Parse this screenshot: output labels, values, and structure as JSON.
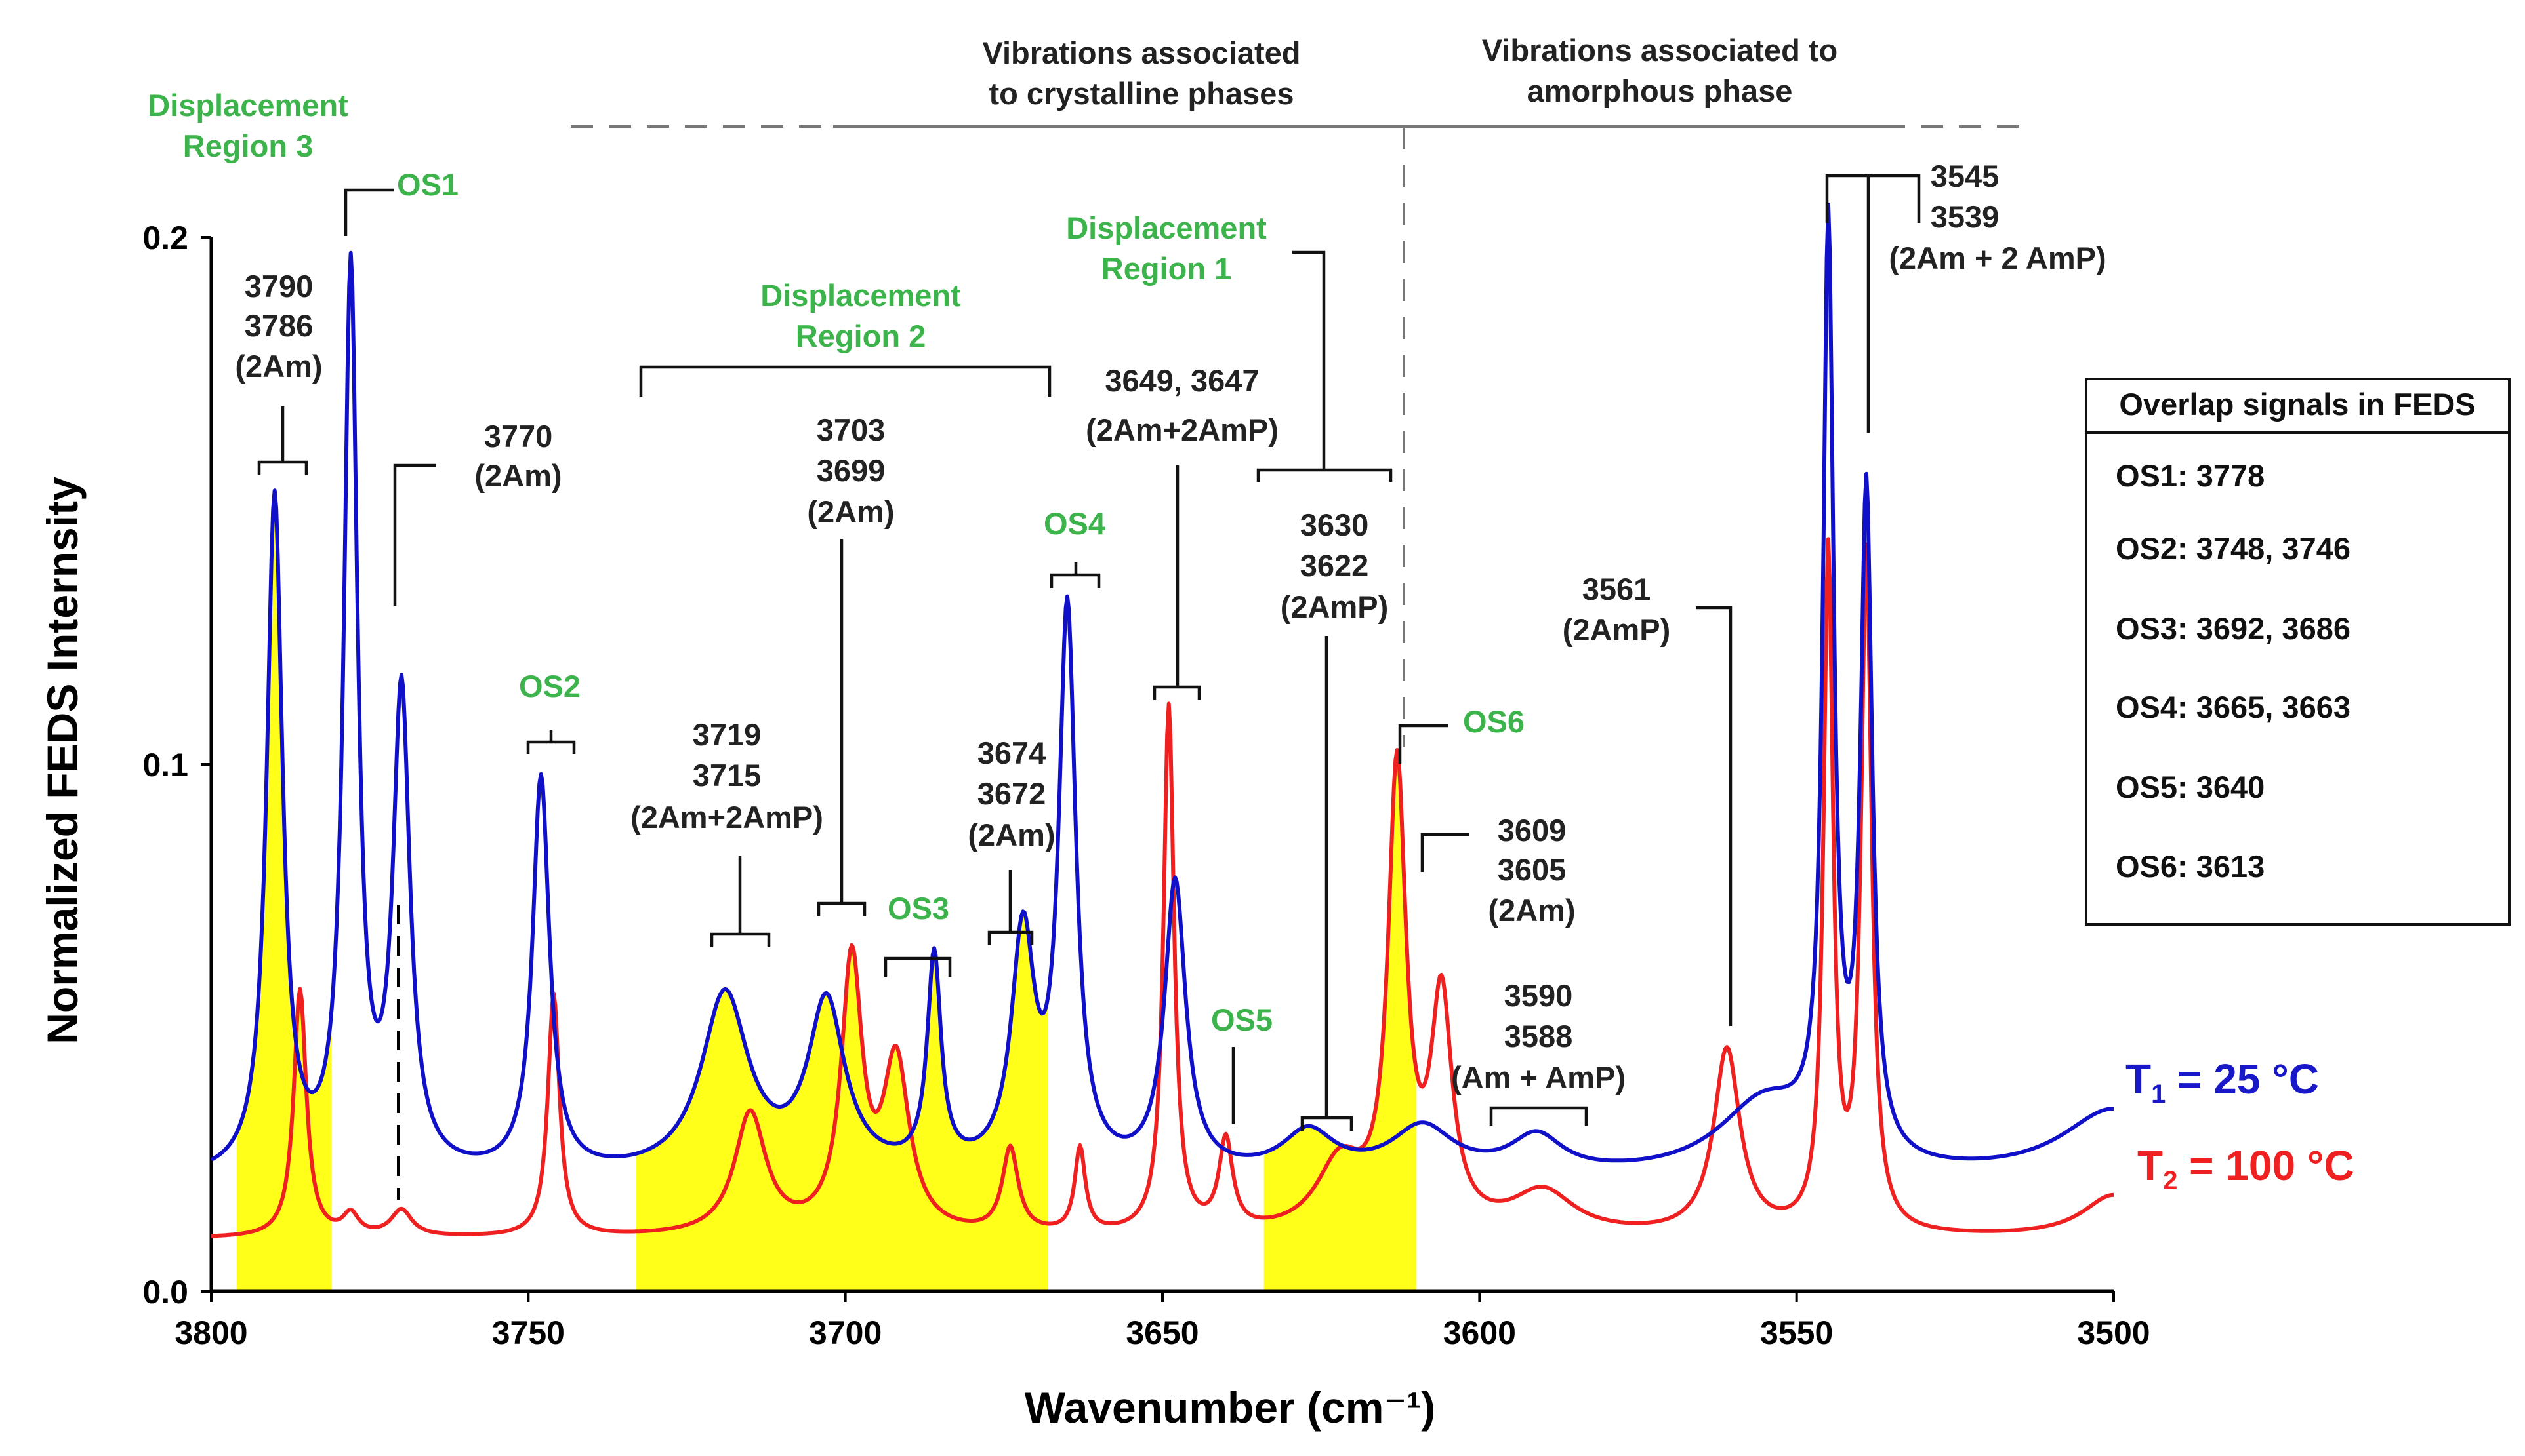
{
  "chart_data": {
    "type": "line",
    "xlabel": "Wavenumber (cm⁻¹)",
    "ylabel": "Normalized FEDS Internsity",
    "xlim": [
      3800,
      3500
    ],
    "ylim": [
      0.0,
      0.2
    ],
    "x_ticks": [
      "3800",
      "3750",
      "3700",
      "3650",
      "3600",
      "3550",
      "3500"
    ],
    "y_ticks": [
      "0.0",
      "0.1",
      "0.2"
    ],
    "series": [
      {
        "name": "T1 = 25 °C",
        "color": "#1010c8",
        "baseline": 0.021,
        "slope": 4e-05,
        "peaks": [
          [
            3790,
            0.128,
            1.5
          ],
          [
            3778,
            0.17,
            1.3
          ],
          [
            3770,
            0.09,
            1.6
          ],
          [
            3748,
            0.075,
            1.6
          ],
          [
            3719,
            0.034,
            4.5
          ],
          [
            3703,
            0.032,
            3.5
          ],
          [
            3686,
            0.04,
            1.3
          ],
          [
            3672,
            0.044,
            2.2
          ],
          [
            3665,
            0.105,
            1.6
          ],
          [
            3648,
            0.055,
            2.0
          ],
          [
            3627,
            0.008,
            5.0
          ],
          [
            3609,
            0.009,
            6.0
          ],
          [
            3591,
            0.007,
            5.0
          ],
          [
            3555,
            0.014,
            9.0
          ],
          [
            3545,
            0.174,
            1.0
          ],
          [
            3539,
            0.125,
            1.1
          ],
          [
            3500,
            0.013,
            10.0
          ]
        ]
      },
      {
        "name": "T2 = 100 °C",
        "color": "#ee2020",
        "baseline": 0.01,
        "slope": 3e-05,
        "peaks": [
          [
            3786,
            0.047,
            1.2
          ],
          [
            3778,
            0.004,
            1.5
          ],
          [
            3770,
            0.005,
            2.0
          ],
          [
            3746,
            0.046,
            1.1
          ],
          [
            3715,
            0.023,
            3.0
          ],
          [
            3699,
            0.051,
            2.0
          ],
          [
            3692,
            0.032,
            2.5
          ],
          [
            3674,
            0.016,
            1.5
          ],
          [
            3663,
            0.016,
            1.0
          ],
          [
            3649,
            0.1,
            1.0
          ],
          [
            3640,
            0.017,
            1.3
          ],
          [
            3622,
            0.013,
            4.5
          ],
          [
            3613,
            0.086,
            1.7
          ],
          [
            3606,
            0.043,
            2.0
          ],
          [
            3590,
            0.008,
            6.0
          ],
          [
            3561,
            0.035,
            2.5
          ],
          [
            3545,
            0.128,
            0.9
          ],
          [
            3539,
            0.128,
            1.0
          ],
          [
            3500,
            0.008,
            6.0
          ]
        ]
      }
    ],
    "shaded_regions": [
      [
        3796,
        3781
      ],
      [
        3733,
        3668
      ],
      [
        3634,
        3610
      ]
    ],
    "shade_color": "#ffff1a"
  },
  "annotations": {
    "vib_crystalline": [
      "Vibrations associated",
      "to crystalline phases"
    ],
    "vib_amorphous": [
      "Vibrations associated to",
      "amorphous phase"
    ],
    "disp_region3": [
      "Displacement",
      "Region 3"
    ],
    "disp_region2": [
      "Displacement",
      "Region 2"
    ],
    "disp_region1": [
      "Displacement",
      "Region 1"
    ],
    "os1": "OS1",
    "os2": "OS2",
    "os3": "OS3",
    "os4": "OS4",
    "os5": "OS5",
    "os6": "OS6",
    "peak_3790": [
      "3790",
      "3786",
      "(2Am)"
    ],
    "peak_3770": [
      "3770",
      "(2Am)"
    ],
    "peak_3719": [
      "3719",
      "3715",
      "(2Am+2AmP)"
    ],
    "peak_3703": [
      "3703",
      "3699",
      "(2Am)"
    ],
    "peak_3674": [
      "3674",
      "3672",
      "(2Am)"
    ],
    "peak_3649": [
      "3649, 3647",
      "(2Am+2AmP)"
    ],
    "peak_3630": [
      "3630",
      "3622",
      "(2AmP)"
    ],
    "peak_3609": [
      "3609",
      "3605",
      "(2Am)"
    ],
    "peak_3590": [
      "3590",
      "3588",
      "(Am + AmP)"
    ],
    "peak_3561": [
      "3561",
      "(2AmP)"
    ],
    "peak_3545": [
      "3545",
      "3539",
      "(2Am + 2 AmP)"
    ]
  },
  "overlap_box": {
    "title": "Overlap signals in FEDS",
    "items": [
      "OS1: 3778",
      "OS2: 3748, 3746",
      "OS3: 3692, 3686",
      "OS4: 3665, 3663",
      "OS5: 3640",
      "OS6: 3613"
    ]
  },
  "legend": {
    "t1_main": "T",
    "t1_sub": "1",
    "t1_rest": " = 25 °C",
    "t2_main": "T",
    "t2_sub": "2",
    "t2_rest": " = 100 °C"
  }
}
